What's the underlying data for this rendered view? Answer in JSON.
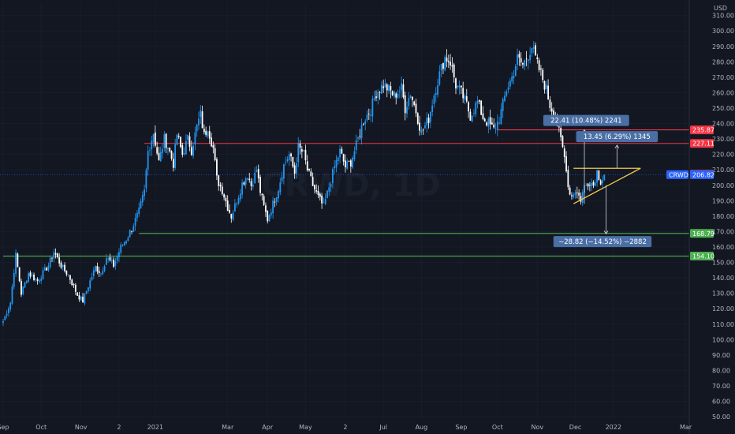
{
  "chart_data": {
    "type": "candlestick",
    "currency": "USD",
    "watermark": "CRWD, 1D",
    "ylim": [
      48,
      318
    ],
    "yticks": [
      50,
      60,
      70,
      80,
      90,
      100,
      110,
      120,
      130,
      140,
      150,
      160,
      170,
      180,
      190,
      200,
      210,
      220,
      230,
      240,
      250,
      260,
      270,
      280,
      290,
      300,
      310
    ],
    "ytick_labels": [
      "50.00",
      "60.00",
      "70.00",
      "80.00",
      "90.00",
      "100.00",
      "110.00",
      "120.00",
      "130.00",
      "140.00",
      "150.00",
      "160.00",
      "170.00",
      "180.00",
      "190.00",
      "200.00",
      "210.00",
      "220.00",
      "230.00",
      "240.00",
      "250.00",
      "260.00",
      "270.00",
      "280.00",
      "290.00",
      "300.00",
      "310.00"
    ],
    "xticks": [
      {
        "label": "Sep",
        "bar": 0
      },
      {
        "label": "Oct",
        "bar": 21
      },
      {
        "label": "Nov",
        "bar": 43
      },
      {
        "label": "2",
        "bar": 64
      },
      {
        "label": "2021",
        "bar": 84
      },
      {
        "label": "Mar",
        "bar": 124
      },
      {
        "label": "Apr",
        "bar": 146
      },
      {
        "label": "May",
        "bar": 167
      },
      {
        "label": "2",
        "bar": 189
      },
      {
        "label": "Jul",
        "bar": 210
      },
      {
        "label": "Aug",
        "bar": 231
      },
      {
        "label": "Sep",
        "bar": 253
      },
      {
        "label": "Oct",
        "bar": 273
      },
      {
        "label": "Nov",
        "bar": 295
      },
      {
        "label": "Dec",
        "bar": 316
      },
      {
        "label": "2022",
        "bar": 337
      },
      {
        "label": "Mar",
        "bar": 377
      }
    ],
    "anchors": [
      [
        0,
        112
      ],
      [
        4,
        124
      ],
      [
        7,
        155
      ],
      [
        10,
        130
      ],
      [
        14,
        143
      ],
      [
        19,
        138
      ],
      [
        25,
        148
      ],
      [
        28,
        157
      ],
      [
        33,
        146
      ],
      [
        36,
        142
      ],
      [
        41,
        129
      ],
      [
        44,
        125
      ],
      [
        48,
        138
      ],
      [
        51,
        147
      ],
      [
        54,
        143
      ],
      [
        57,
        153
      ],
      [
        61,
        148
      ],
      [
        65,
        160
      ],
      [
        68,
        165
      ],
      [
        71,
        172
      ],
      [
        75,
        183
      ],
      [
        78,
        196
      ],
      [
        80,
        222
      ],
      [
        83,
        234
      ],
      [
        86,
        215
      ],
      [
        89,
        230
      ],
      [
        91,
        225
      ],
      [
        94,
        214
      ],
      [
        96,
        233
      ],
      [
        99,
        220
      ],
      [
        102,
        230
      ],
      [
        104,
        223
      ],
      [
        107,
        238
      ],
      [
        109,
        246
      ],
      [
        111,
        232
      ],
      [
        113,
        238
      ],
      [
        116,
        224
      ],
      [
        118,
        204
      ],
      [
        121,
        197
      ],
      [
        124,
        186
      ],
      [
        126,
        180
      ],
      [
        129,
        190
      ],
      [
        132,
        201
      ],
      [
        135,
        207
      ],
      [
        137,
        200
      ],
      [
        140,
        210
      ],
      [
        142,
        196
      ],
      [
        144,
        186
      ],
      [
        146,
        178
      ],
      [
        149,
        188
      ],
      [
        152,
        198
      ],
      [
        155,
        213
      ],
      [
        158,
        220
      ],
      [
        161,
        208
      ],
      [
        163,
        225
      ],
      [
        166,
        220
      ],
      [
        168,
        210
      ],
      [
        171,
        200
      ],
      [
        174,
        192
      ],
      [
        177,
        186
      ],
      [
        180,
        199
      ],
      [
        183,
        212
      ],
      [
        186,
        222
      ],
      [
        189,
        212
      ],
      [
        192,
        215
      ],
      [
        195,
        226
      ],
      [
        199,
        242
      ],
      [
        203,
        249
      ],
      [
        206,
        260
      ],
      [
        210,
        265
      ],
      [
        213,
        262
      ],
      [
        216,
        258
      ],
      [
        220,
        263
      ],
      [
        222,
        250
      ],
      [
        225,
        260
      ],
      [
        228,
        248
      ],
      [
        231,
        234
      ],
      [
        235,
        243
      ],
      [
        238,
        259
      ],
      [
        241,
        272
      ],
      [
        244,
        283
      ],
      [
        247,
        280
      ],
      [
        250,
        265
      ],
      [
        253,
        260
      ],
      [
        256,
        252
      ],
      [
        258,
        245
      ],
      [
        262,
        254
      ],
      [
        265,
        244
      ],
      [
        268,
        240
      ],
      [
        271,
        236
      ],
      [
        274,
        243
      ],
      [
        278,
        262
      ],
      [
        281,
        270
      ],
      [
        284,
        282
      ],
      [
        287,
        278
      ],
      [
        290,
        285
      ],
      [
        292,
        290
      ],
      [
        295,
        278
      ],
      [
        297,
        272
      ],
      [
        300,
        262
      ],
      [
        302,
        252
      ],
      [
        305,
        245
      ],
      [
        307,
        234
      ],
      [
        309,
        224
      ],
      [
        311,
        212
      ],
      [
        312,
        199
      ],
      [
        314,
        193
      ],
      [
        316,
        197
      ],
      [
        319,
        191
      ],
      [
        321,
        199
      ],
      [
        324,
        203
      ],
      [
        326,
        200
      ],
      [
        328,
        209
      ],
      [
        330,
        203
      ],
      [
        332,
        206
      ]
    ],
    "last_bar": 332,
    "last_close": 206.82,
    "levels": [
      {
        "price": 235.87,
        "label": "235.87",
        "color": "#f23645",
        "x_from_bar": 273
      },
      {
        "price": 227.11,
        "label": "227.11",
        "color": "#f23645",
        "x_from_bar": 78
      },
      {
        "price": 168.79,
        "label": "168.79",
        "color": "#4caf50",
        "x_from_bar": 75
      },
      {
        "price": 154.1,
        "label": "154.10",
        "color": "#4caf50",
        "x_from_bar": 0
      }
    ],
    "current_tags": [
      {
        "label": "207.18",
        "price": 207.18,
        "color": "#f23645"
      },
      {
        "label": "206.82",
        "price": 206.82,
        "color": "#2962ff",
        "ticker": "CRWD"
      }
    ],
    "triangle": {
      "top": {
        "from_bar": 315,
        "to_bar": 352,
        "price": 211
      },
      "bottom": {
        "from_bar": 315,
        "from_price": 188,
        "to_bar": 352,
        "to_price": 211
      },
      "color": "#f2c94c"
    },
    "measures": [
      {
        "bar": 321,
        "from": 188,
        "to": 236,
        "label": "22.41 (10.48%) 2241",
        "label_bar": 322,
        "label_price": 242
      },
      {
        "bar": 339,
        "from": 211,
        "to": 226,
        "label": "13.45 (6.29%) 1345",
        "label_bar": 339,
        "label_price": 231.5
      },
      {
        "bar": 333,
        "from": 200,
        "to": 168.5,
        "label": "−28.82 (−14.52%) −2882",
        "label_bar": 331,
        "label_price": 163.5
      }
    ],
    "colors": {
      "up": "#2196f3",
      "down": "#ffffff",
      "bg": "#131722",
      "grid": "#1c2030",
      "label_bg": "#4a6fa5"
    }
  }
}
